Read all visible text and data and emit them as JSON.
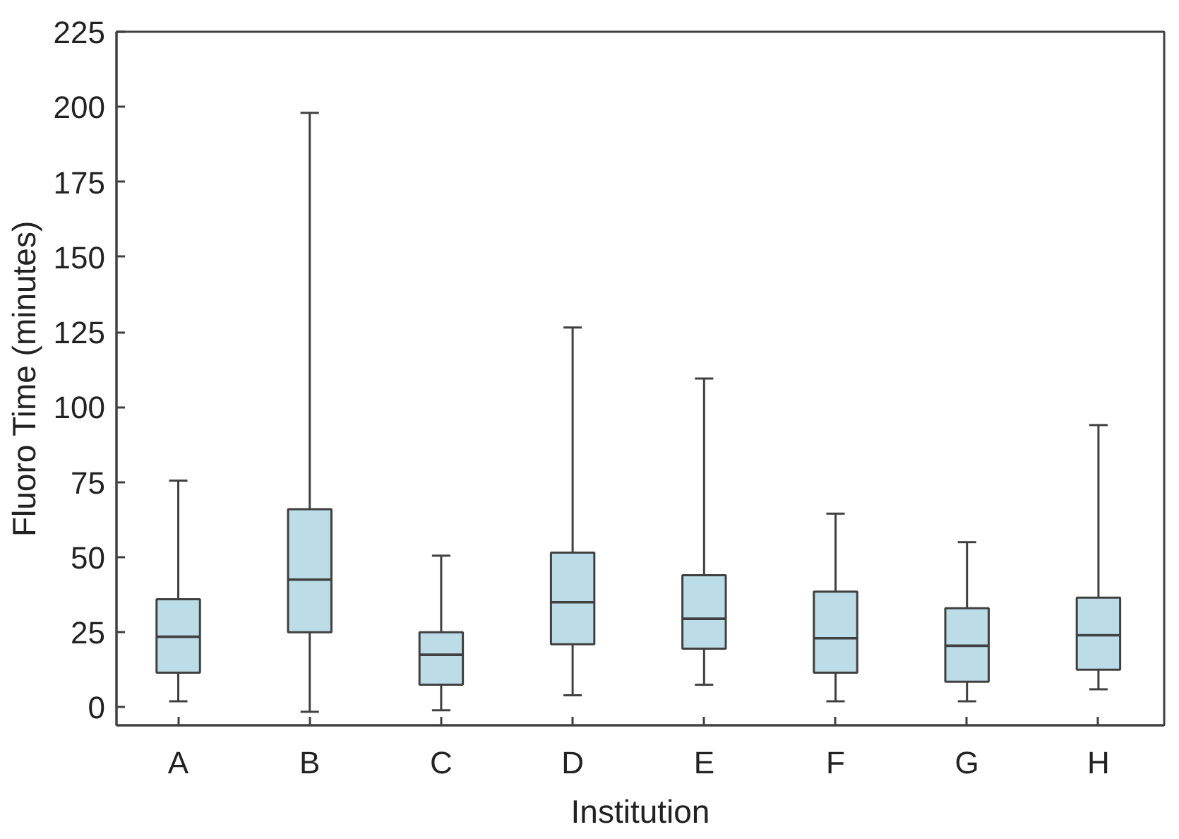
{
  "chart_data": {
    "type": "box",
    "xlabel": "Institution",
    "ylabel": "Fluoro Time (minutes)",
    "categories": [
      "A",
      "B",
      "C",
      "D",
      "E",
      "F",
      "G",
      "H"
    ],
    "color": "#bcdde8",
    "boxes": [
      {
        "low": 2,
        "q1": 11.5,
        "median": 23.5,
        "q3": 36,
        "high": 75.5
      },
      {
        "low": -1.5,
        "q1": 25,
        "median": 42.5,
        "q3": 66,
        "high": 198
      },
      {
        "low": -1,
        "q1": 7.5,
        "median": 17.5,
        "q3": 25,
        "high": 50.5
      },
      {
        "low": 4,
        "q1": 21,
        "median": 35,
        "q3": 51.5,
        "high": 126.5
      },
      {
        "low": 7.5,
        "q1": 19.5,
        "median": 29.5,
        "q3": 44,
        "high": 109.5
      },
      {
        "low": 2,
        "q1": 11.5,
        "median": 23,
        "q3": 38.5,
        "high": 64.5
      },
      {
        "low": 2,
        "q1": 8.5,
        "median": 20.5,
        "q3": 33,
        "high": 55
      },
      {
        "low": 6,
        "q1": 12.5,
        "median": 24,
        "q3": 36.5,
        "high": 94
      }
    ],
    "ylim": [
      -6,
      225
    ],
    "yticks": [
      0,
      25,
      50,
      75,
      100,
      125,
      150,
      175,
      200,
      225
    ],
    "grid": false
  }
}
